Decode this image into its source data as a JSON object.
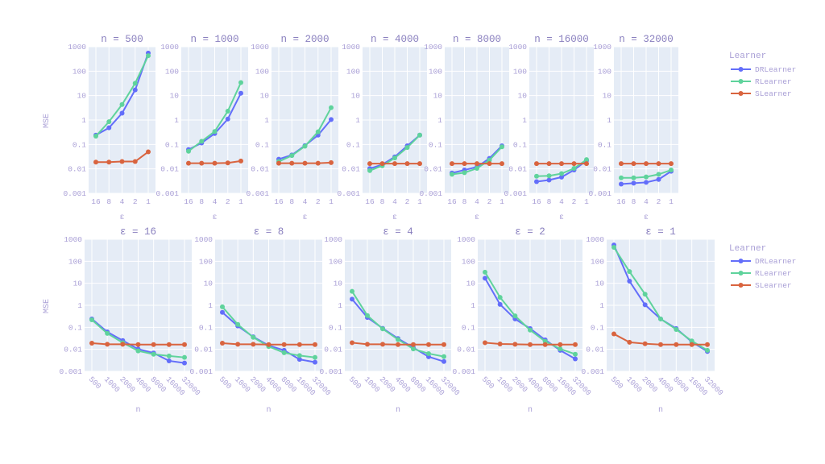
{
  "chart_data": {
    "type": "line",
    "y_scale": "log",
    "ylim": [
      0.001,
      1000
    ],
    "y_ticks": [
      "0.001",
      "0.01",
      "0.1",
      "1",
      "10",
      "100",
      "1000"
    ],
    "ylabel": "MSE",
    "grid": true,
    "legend": {
      "title": "Learner",
      "placement": "right"
    },
    "n_values": [
      500,
      1000,
      2000,
      4000,
      8000,
      16000,
      32000
    ],
    "epsilon_values": [
      16,
      8,
      4,
      2,
      1
    ],
    "series": [
      {
        "name": "DRLearner",
        "color": "#636efa",
        "values_by_n_then_epsilon": [
          [
            0.24,
            0.48,
            1.9,
            17,
            550
          ],
          [
            0.062,
            0.115,
            0.28,
            1.1,
            12.5
          ],
          [
            0.025,
            0.037,
            0.09,
            0.24,
            1.05
          ],
          [
            0.0103,
            0.015,
            0.031,
            0.088,
            0.24
          ],
          [
            0.0068,
            0.009,
            0.012,
            0.027,
            0.088
          ],
          [
            0.003,
            0.0035,
            0.0046,
            0.009,
            0.022
          ],
          [
            0.0024,
            0.0026,
            0.0028,
            0.0037,
            0.008
          ]
        ]
      },
      {
        "name": "RLearner",
        "color": "#5fd39c",
        "values_by_n_then_epsilon": [
          [
            0.22,
            0.85,
            4.3,
            32,
            430
          ],
          [
            0.053,
            0.135,
            0.34,
            2.3,
            34
          ],
          [
            0.02,
            0.035,
            0.085,
            0.33,
            3.2
          ],
          [
            0.0085,
            0.0135,
            0.028,
            0.075,
            0.24
          ],
          [
            0.006,
            0.007,
            0.0105,
            0.023,
            0.08
          ],
          [
            0.005,
            0.0052,
            0.0064,
            0.0105,
            0.024
          ],
          [
            0.0043,
            0.0043,
            0.0047,
            0.006,
            0.009
          ]
        ]
      },
      {
        "name": "SLearner",
        "color": "#d9643f",
        "values_by_n_then_epsilon": [
          [
            0.019,
            0.019,
            0.02,
            0.02,
            0.05
          ],
          [
            0.017,
            0.017,
            0.017,
            0.0175,
            0.021
          ],
          [
            0.017,
            0.017,
            0.017,
            0.017,
            0.018
          ],
          [
            0.0165,
            0.0165,
            0.0165,
            0.0165,
            0.0165
          ],
          [
            0.0165,
            0.0165,
            0.0165,
            0.0165,
            0.0165
          ],
          [
            0.0165,
            0.0165,
            0.0165,
            0.0165,
            0.0165
          ],
          [
            0.0165,
            0.0165,
            0.0165,
            0.0165,
            0.0165
          ]
        ]
      }
    ],
    "top_row": {
      "xlabel": "ε",
      "x_ticks": [
        "16",
        "8",
        "4",
        "2",
        "1"
      ],
      "titles": [
        "n = 500",
        "n = 1000",
        "n = 2000",
        "n = 4000",
        "n = 8000",
        "n = 16000",
        "n = 32000"
      ]
    },
    "bottom_row": {
      "xlabel": "n",
      "x_ticks": [
        "500",
        "1000",
        "2000",
        "4000",
        "8000",
        "16000",
        "32000"
      ],
      "titles": [
        "ε = 16",
        "ε = 8",
        "ε = 4",
        "ε = 2",
        "ε = 1"
      ]
    }
  }
}
